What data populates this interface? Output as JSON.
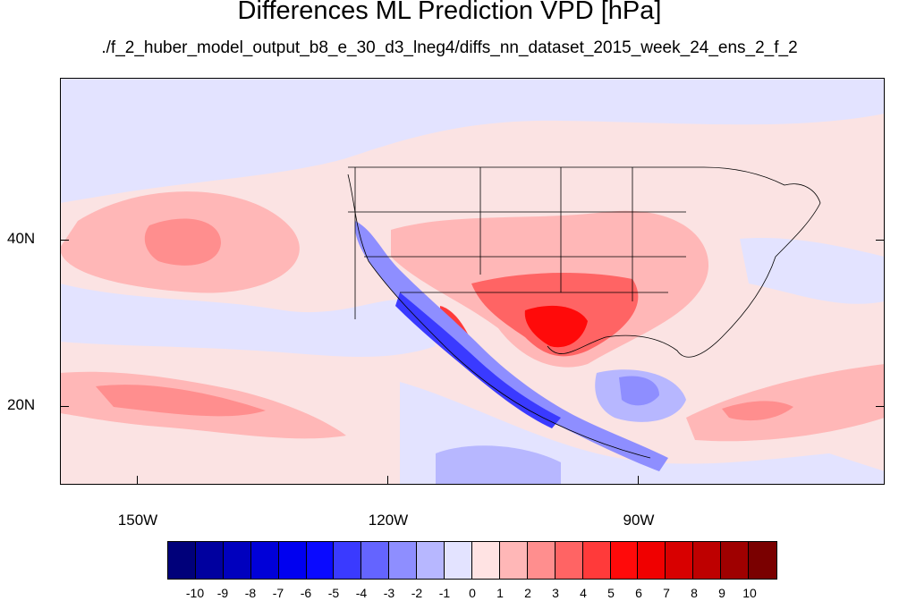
{
  "title": "Differences ML Prediction VPD [hPa]",
  "subtitle": "./f_2_huber_model_output_b8_e_30_d3_lneg4/diffs_nn_dataset_2015_week_24_ens_2_f_2",
  "lat_labels": [
    "40N",
    "20N"
  ],
  "lon_labels": [
    "150W",
    "120W",
    "90W"
  ],
  "colorbar": {
    "labels": [
      "-10",
      "-9",
      "-8",
      "-7",
      "-6",
      "-5",
      "-4",
      "-3",
      "-2",
      "-1",
      "0",
      "1",
      "2",
      "3",
      "4",
      "5",
      "6",
      "7",
      "8",
      "9",
      "10"
    ],
    "colors": [
      "#00007a",
      "#00009f",
      "#0000be",
      "#0000d8",
      "#0000f0",
      "#0a0aff",
      "#3a3aff",
      "#6464ff",
      "#8e8eff",
      "#b7b7ff",
      "#e3e3ff",
      "#ffe3e3",
      "#ffb7b7",
      "#ff8e8e",
      "#ff6464",
      "#ff3a3a",
      "#ff0a0a",
      "#f00000",
      "#d80000",
      "#be0000",
      "#9f0000",
      "#7a0000"
    ]
  }
}
